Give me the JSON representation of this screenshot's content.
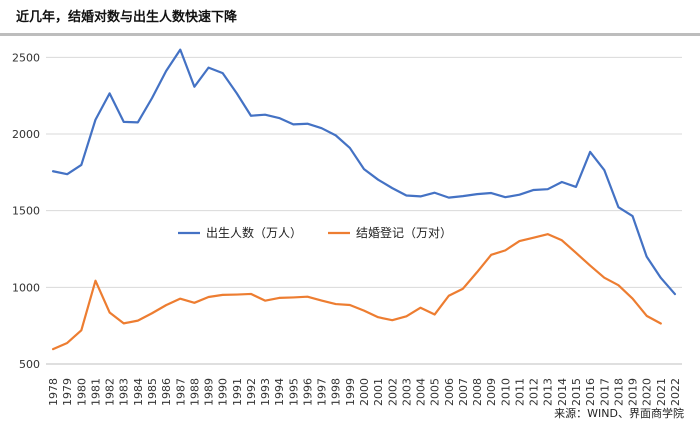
{
  "title": "近几年，结婚对数与出生人数快速下降",
  "source": "来源：WIND、界面商学院",
  "chart_data": {
    "type": "line",
    "title": "近几年，结婚对数与出生人数快速下降",
    "xlabel": "",
    "ylabel": "",
    "ylim": [
      500,
      2600
    ],
    "yticks": [
      500,
      1000,
      1500,
      2000,
      2500
    ],
    "grid": "horizontal",
    "legend_position": "center-left",
    "categories": [
      "1978",
      "1979",
      "1980",
      "1981",
      "1982",
      "1983",
      "1984",
      "1985",
      "1986",
      "1987",
      "1988",
      "1989",
      "1990",
      "1991",
      "1992",
      "1993",
      "1994",
      "1995",
      "1996",
      "1997",
      "1998",
      "1999",
      "2000",
      "2001",
      "2002",
      "2003",
      "2004",
      "2005",
      "2006",
      "2007",
      "2008",
      "2009",
      "2010",
      "2011",
      "2012",
      "2013",
      "2014",
      "2015",
      "2016",
      "2017",
      "2018",
      "2019",
      "2020",
      "2021",
      "2022"
    ],
    "series": [
      {
        "name": "出生人数（万人）",
        "color": "#4472c4",
        "values": [
          1757,
          1738,
          1798,
          2093,
          2265,
          2079,
          2076,
          2234,
          2411,
          2550,
          2308,
          2433,
          2397,
          2265,
          2119,
          2126,
          2104,
          2063,
          2067,
          2038,
          1991,
          1909,
          1771,
          1702,
          1647,
          1599,
          1593,
          1617,
          1585,
          1595,
          1608,
          1615,
          1588,
          1604,
          1635,
          1640,
          1687,
          1655,
          1883,
          1765,
          1523,
          1465,
          1200,
          1062,
          956
        ]
      },
      {
        "name": "结婚登记（万对）",
        "color": "#ed7d31",
        "values": [
          597,
          637,
          720,
          1043,
          836,
          765,
          783,
          831,
          884,
          926,
          899,
          937,
          951,
          953,
          957,
          913,
          931,
          934,
          939,
          914,
          891,
          885,
          848,
          805,
          786,
          811,
          867,
          823,
          945,
          991,
          1099,
          1212,
          1241,
          1302,
          1324,
          1347,
          1307,
          1225,
          1142,
          1063,
          1014,
          927,
          814,
          764,
          null
        ]
      }
    ]
  }
}
